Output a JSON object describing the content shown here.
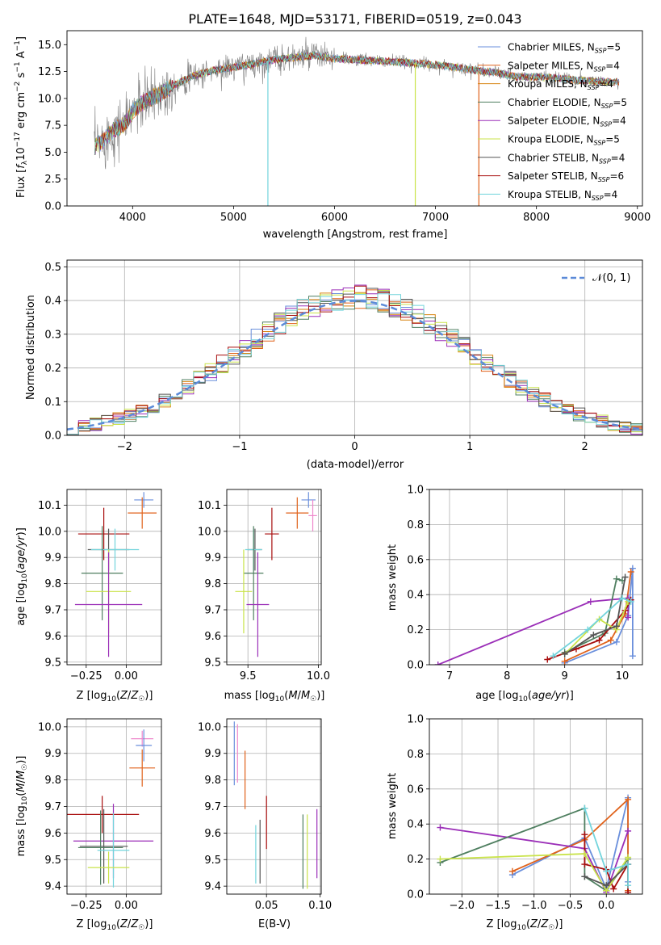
{
  "colors": {
    "chabrier_miles": "#6a8fdc",
    "salpeter_miles": "#e0621b",
    "kroupa_miles": "#d7820f",
    "chabrier_elodie": "#4f7f60",
    "salpeter_elodie": "#9b2fb8",
    "kroupa_elodie": "#c9e34a",
    "chabrier_stelib": "#555555",
    "salpeter_stelib": "#a80d0d",
    "kroupa_stelib": "#72d4dc",
    "data": "#808080",
    "pink": "#ee88cc",
    "normal": "#5b8ad8",
    "grid": "#b0b0b0"
  },
  "legend": [
    {
      "name": "Chabrier MILES, N",
      "sub": "SSP",
      "eq": "=5",
      "color": "#6a8fdc"
    },
    {
      "name": "Salpeter MILES, N",
      "sub": "SSP",
      "eq": "=4",
      "color": "#e0621b"
    },
    {
      "name": "Kroupa MILES, N",
      "sub": "SSP",
      "eq": "=4",
      "color": "#d7820f"
    },
    {
      "name": "Chabrier ELODIE, N",
      "sub": "SSP",
      "eq": "=5",
      "color": "#4f7f60"
    },
    {
      "name": "Salpeter ELODIE, N",
      "sub": "SSP",
      "eq": "=4",
      "color": "#9b2fb8"
    },
    {
      "name": "Kroupa ELODIE, N",
      "sub": "SSP",
      "eq": "=5",
      "color": "#c9e34a"
    },
    {
      "name": "Chabrier STELIB, N",
      "sub": "SSP",
      "eq": "=4",
      "color": "#555555"
    },
    {
      "name": "Salpeter STELIB, N",
      "sub": "SSP",
      "eq": "=6",
      "color": "#a80d0d"
    },
    {
      "name": "Kroupa STELIB, N",
      "sub": "SSP",
      "eq": "=4",
      "color": "#72d4dc"
    }
  ],
  "chart_data": [
    {
      "id": "spectrum",
      "type": "line",
      "title": "PLATE=1648, MJD=53171, FIBERID=0519, z=0.043",
      "xlabel": "wavelength [Angstrom, rest frame]",
      "ylabel": "Flux [f_λ 10⁻¹⁷ erg cm⁻² s⁻¹ A⁻¹]",
      "xlim": [
        3350,
        9050
      ],
      "ylim": [
        0,
        16.3
      ],
      "xticks": [
        4000,
        5000,
        6000,
        7000,
        8000,
        9000
      ],
      "yticks": [
        0.0,
        2.5,
        5.0,
        7.5,
        10.0,
        12.5,
        15.0
      ],
      "ytick_labels": [
        "0.0",
        "2.5",
        "5.0",
        "7.5",
        "10.0",
        "12.5",
        "15.0"
      ],
      "grid": false,
      "legend_position": "top-right",
      "continuum": [
        [
          3620,
          5.5
        ],
        [
          3700,
          6.0
        ],
        [
          3800,
          7.0
        ],
        [
          3900,
          7.5
        ],
        [
          3950,
          8.0
        ],
        [
          4000,
          8.8
        ],
        [
          4100,
          9.6
        ],
        [
          4200,
          10.1
        ],
        [
          4300,
          10.6
        ],
        [
          4400,
          11.2
        ],
        [
          4600,
          12.1
        ],
        [
          4800,
          12.6
        ],
        [
          5000,
          12.9
        ],
        [
          5200,
          13.2
        ],
        [
          5400,
          13.6
        ],
        [
          5600,
          13.8
        ],
        [
          5800,
          14.0
        ],
        [
          6000,
          13.7
        ],
        [
          6200,
          13.6
        ],
        [
          6400,
          13.5
        ],
        [
          6600,
          13.4
        ],
        [
          6800,
          13.3
        ],
        [
          7000,
          13.1
        ],
        [
          7200,
          12.9
        ],
        [
          7400,
          12.6
        ],
        [
          7600,
          12.4
        ],
        [
          7800,
          12.0
        ],
        [
          8000,
          12.0
        ],
        [
          8200,
          11.9
        ],
        [
          8400,
          11.7
        ],
        [
          8600,
          11.6
        ],
        [
          8820,
          11.5
        ]
      ],
      "drop_lines": [
        [
          5340,
          "#72d4dc"
        ],
        [
          6800,
          "#c9e34a"
        ],
        [
          7430,
          "#e0621b"
        ]
      ]
    },
    {
      "id": "residuals",
      "type": "histogram",
      "xlabel": "(data-model)/error",
      "ylabel": "Normed distribution",
      "xlim": [
        -2.5,
        2.5
      ],
      "ylim": [
        0,
        0.52
      ],
      "xticks": [
        -2,
        -1,
        0,
        1,
        2
      ],
      "yticks": [
        0.0,
        0.1,
        0.2,
        0.3,
        0.4,
        0.5
      ],
      "ytick_labels": [
        "0.0",
        "0.1",
        "0.2",
        "0.3",
        "0.4",
        "0.5"
      ],
      "grid": true,
      "bin_width": 0.1,
      "normal_label": "𝒩(0, 1)",
      "legend_position": "top-right"
    },
    {
      "id": "age_vs_Z",
      "type": "errorbar",
      "xlabel": "Z [log₁₀(Z/Z☉)]",
      "ylabel": "age  [log₁₀(age/yr)]",
      "xlim": [
        -0.37,
        0.22
      ],
      "ylim": [
        9.49,
        10.16
      ],
      "xticks": [
        -0.25,
        0.0
      ],
      "xtick_labels": [
        "−0.25",
        "0.00"
      ],
      "yticks": [
        9.5,
        9.6,
        9.7,
        9.8,
        9.9,
        10.0,
        10.1
      ],
      "ytick_labels": [
        "9.5",
        "9.6",
        "9.7",
        "9.8",
        "9.9",
        "10.0",
        "10.1"
      ],
      "points": [
        {
          "x": 0.11,
          "xe": 0.06,
          "y": 10.12,
          "ye": 0.03,
          "c": "#6a8fdc"
        },
        {
          "x": 0.1,
          "xe": 0.09,
          "y": 10.07,
          "ye": 0.06,
          "c": "#e0621b"
        },
        {
          "x": -0.14,
          "xe": 0.16,
          "y": 9.99,
          "ye": 0.1,
          "c": "#a80d0d"
        },
        {
          "x": -0.11,
          "xe": 0.13,
          "y": 9.93,
          "ye": 0.08,
          "c": "#555555"
        },
        {
          "x": -0.07,
          "xe": 0.15,
          "y": 9.93,
          "ye": 0.08,
          "c": "#72d4dc"
        },
        {
          "x": -0.15,
          "xe": 0.13,
          "y": 9.84,
          "ye": 0.18,
          "c": "#4f7f60"
        },
        {
          "x": -0.11,
          "xe": 0.14,
          "y": 9.77,
          "ye": 0.16,
          "c": "#c9e34a"
        },
        {
          "x": -0.11,
          "xe": 0.21,
          "y": 9.72,
          "ye": 0.2,
          "c": "#9b2fb8"
        }
      ]
    },
    {
      "id": "age_vs_mass",
      "type": "errorbar",
      "xlabel": "mass [log₁₀(M/M☉)]",
      "xlim": [
        9.35,
        10.02
      ],
      "ylim": [
        9.49,
        10.16
      ],
      "xticks": [
        9.5,
        10.0
      ],
      "xtick_labels": [
        "9.5",
        "10.0"
      ],
      "yticks": [
        9.5,
        9.6,
        9.7,
        9.8,
        9.9,
        10.0,
        10.1
      ],
      "ytick_labels": [
        "9.5",
        "9.6",
        "9.7",
        "9.8",
        "9.9",
        "10.0",
        "10.1"
      ],
      "points": [
        {
          "x": 9.93,
          "xe": 0.05,
          "y": 10.12,
          "ye": 0.03,
          "c": "#6a8fdc"
        },
        {
          "x": 9.96,
          "xe": 0.03,
          "y": 10.06,
          "ye": 0.06,
          "c": "#ee88cc"
        },
        {
          "x": 9.85,
          "xe": 0.08,
          "y": 10.07,
          "ye": 0.06,
          "c": "#e0621b"
        },
        {
          "x": 9.67,
          "xe": 0.05,
          "y": 9.99,
          "ye": 0.1,
          "c": "#a80d0d"
        },
        {
          "x": 9.55,
          "xe": 0.05,
          "y": 9.93,
          "ye": 0.08,
          "c": "#555555"
        },
        {
          "x": 9.54,
          "xe": 0.06,
          "y": 9.93,
          "ye": 0.08,
          "c": "#72d4dc"
        },
        {
          "x": 9.54,
          "xe": 0.07,
          "y": 9.84,
          "ye": 0.18,
          "c": "#4f7f60"
        },
        {
          "x": 9.47,
          "xe": 0.06,
          "y": 9.77,
          "ye": 0.16,
          "c": "#c9e34a"
        },
        {
          "x": 9.57,
          "xe": 0.08,
          "y": 9.72,
          "ye": 0.2,
          "c": "#9b2fb8"
        }
      ]
    },
    {
      "id": "weight_vs_age",
      "type": "line",
      "xlabel": "age  [log₁₀(age/yr)]",
      "ylabel": "mass weight",
      "xlim": [
        6.65,
        10.35
      ],
      "ylim": [
        0,
        1
      ],
      "xticks": [
        7,
        8,
        9,
        10
      ],
      "yticks": [
        0.0,
        0.2,
        0.4,
        0.6,
        0.8,
        1.0
      ],
      "ytick_labels": [
        "0.0",
        "0.2",
        "0.4",
        "0.6",
        "0.8",
        "1.0"
      ],
      "series": [
        {
          "c": "#6a8fdc",
          "pts": [
            [
              9.0,
              0.01
            ],
            [
              9.9,
              0.13
            ],
            [
              10.1,
              0.28
            ],
            [
              10.18,
              0.55
            ],
            [
              10.18,
              0.05
            ]
          ]
        },
        {
          "c": "#e0621b",
          "pts": [
            [
              9.0,
              0.02
            ],
            [
              9.8,
              0.14
            ],
            [
              10.05,
              0.29
            ],
            [
              10.15,
              0.53
            ]
          ]
        },
        {
          "c": "#9b2fb8",
          "pts": [
            [
              6.8,
              0.0
            ],
            [
              9.45,
              0.36
            ],
            [
              10.1,
              0.38
            ],
            [
              10.1,
              0.27
            ]
          ]
        },
        {
          "c": "#4f7f60",
          "pts": [
            [
              9.0,
              0.07
            ],
            [
              9.7,
              0.18
            ],
            [
              9.9,
              0.49
            ],
            [
              10.0,
              0.48
            ]
          ]
        },
        {
          "c": "#a80d0d",
          "pts": [
            [
              8.7,
              0.03
            ],
            [
              9.2,
              0.09
            ],
            [
              9.6,
              0.14
            ],
            [
              10.05,
              0.31
            ],
            [
              10.15,
              0.37
            ]
          ]
        },
        {
          "c": "#c9e34a",
          "pts": [
            [
              9.0,
              0.06
            ],
            [
              9.6,
              0.26
            ],
            [
              9.9,
              0.2
            ],
            [
              10.1,
              0.36
            ]
          ]
        },
        {
          "c": "#555555",
          "pts": [
            [
              9.0,
              0.06
            ],
            [
              9.5,
              0.17
            ],
            [
              9.9,
              0.22
            ],
            [
              10.05,
              0.5
            ]
          ]
        },
        {
          "c": "#72d4dc",
          "pts": [
            [
              8.8,
              0.05
            ],
            [
              9.4,
              0.2
            ],
            [
              10.0,
              0.38
            ],
            [
              10.15,
              0.36
            ]
          ]
        }
      ]
    },
    {
      "id": "mass_vs_Z",
      "type": "errorbar",
      "xlabel": "Z [log₁₀(Z/Z☉)]",
      "ylabel": "mass [log₁₀(M/M☉)]",
      "xlim": [
        -0.37,
        0.22
      ],
      "ylim": [
        9.37,
        10.03
      ],
      "xticks": [
        -0.25,
        0.0
      ],
      "xtick_labels": [
        "−0.25",
        "0.00"
      ],
      "yticks": [
        9.4,
        9.5,
        9.6,
        9.7,
        9.8,
        9.9,
        10.0
      ],
      "ytick_labels": [
        "9.4",
        "9.5",
        "9.6",
        "9.7",
        "9.8",
        "9.9",
        "10.0"
      ],
      "points": [
        {
          "x": 0.1,
          "xe": 0.07,
          "y": 9.955,
          "ye": 0.03,
          "c": "#ee88cc"
        },
        {
          "x": 0.11,
          "xe": 0.05,
          "y": 9.93,
          "ye": 0.06,
          "c": "#6a8fdc"
        },
        {
          "x": 0.1,
          "xe": 0.08,
          "y": 9.845,
          "ye": 0.07,
          "c": "#e0621b"
        },
        {
          "x": -0.15,
          "xe": 0.23,
          "y": 9.67,
          "ye": 0.07,
          "c": "#a80d0d"
        },
        {
          "x": -0.08,
          "xe": 0.25,
          "y": 9.57,
          "ye": 0.14,
          "c": "#9b2fb8"
        },
        {
          "x": -0.14,
          "xe": 0.15,
          "y": 9.55,
          "ye": 0.14,
          "c": "#555555"
        },
        {
          "x": -0.16,
          "xe": 0.14,
          "y": 9.545,
          "ye": 0.14,
          "c": "#4f7f60"
        },
        {
          "x": -0.08,
          "xe": 0.1,
          "y": 9.535,
          "ye": 0.14,
          "c": "#72d4dc"
        },
        {
          "x": -0.11,
          "xe": 0.13,
          "y": 9.47,
          "ye": 0.06,
          "c": "#c9e34a"
        }
      ]
    },
    {
      "id": "mass_vs_ebv",
      "type": "errorbar",
      "xlabel": "E(B-V)",
      "xlim": [
        0.013,
        0.101
      ],
      "ylim": [
        9.37,
        10.03
      ],
      "xticks": [
        0.05,
        0.1
      ],
      "xtick_labels": [
        "0.05",
        "0.10"
      ],
      "yticks": [
        9.4,
        9.5,
        9.6,
        9.7,
        9.8,
        9.9,
        10.0
      ],
      "ytick_labels": [
        "9.4",
        "9.5",
        "9.6",
        "9.7",
        "9.8",
        "9.9",
        "10.0"
      ],
      "points": [
        {
          "x": 0.02,
          "xe": 0,
          "y": 9.9,
          "ye": 0.12,
          "c": "#6a8fdc"
        },
        {
          "x": 0.023,
          "xe": 0,
          "y": 9.9,
          "ye": 0.11,
          "c": "#ee88cc"
        },
        {
          "x": 0.03,
          "xe": 0,
          "y": 9.8,
          "ye": 0.11,
          "c": "#e0621b"
        },
        {
          "x": 0.04,
          "xe": 0,
          "y": 9.52,
          "ye": 0.11,
          "c": "#72d4dc"
        },
        {
          "x": 0.044,
          "xe": 0,
          "y": 9.53,
          "ye": 0.12,
          "c": "#555555"
        },
        {
          "x": 0.05,
          "xe": 0,
          "y": 9.64,
          "ye": 0.1,
          "c": "#a80d0d"
        },
        {
          "x": 0.084,
          "xe": 0,
          "y": 9.53,
          "ye": 0.14,
          "c": "#4f7f60"
        },
        {
          "x": 0.088,
          "xe": 0,
          "y": 9.53,
          "ye": 0.14,
          "c": "#c9e34a"
        },
        {
          "x": 0.097,
          "xe": 0,
          "y": 9.56,
          "ye": 0.13,
          "c": "#9b2fb8"
        }
      ]
    },
    {
      "id": "weight_vs_Z",
      "type": "line",
      "xlabel": "Z [log₁₀(Z/Z☉)]",
      "ylabel": "mass weight",
      "xlim": [
        -2.45,
        0.5
      ],
      "ylim": [
        0,
        1
      ],
      "xticks": [
        -2.0,
        -1.5,
        -1.0,
        -0.5,
        0.0
      ],
      "xtick_labels": [
        "−2.0",
        "−1.5",
        "−1.0",
        "−0.5",
        "0.0"
      ],
      "yticks": [
        0.0,
        0.2,
        0.4,
        0.6,
        0.8,
        1.0
      ],
      "ytick_labels": [
        "0.0",
        "0.2",
        "0.4",
        "0.6",
        "0.8",
        "1.0"
      ],
      "series": [
        {
          "c": "#6a8fdc",
          "pts": [
            [
              -1.3,
              0.11
            ],
            [
              -0.3,
              0.32
            ],
            [
              0.0,
              0.03
            ],
            [
              0.3,
              0.55
            ],
            [
              0.3,
              0.07
            ]
          ]
        },
        {
          "c": "#e0621b",
          "pts": [
            [
              -1.3,
              0.13
            ],
            [
              -0.3,
              0.31
            ],
            [
              0.3,
              0.54
            ],
            [
              0.3,
              0.02
            ]
          ]
        },
        {
          "c": "#9b2fb8",
          "pts": [
            [
              -2.3,
              0.38
            ],
            [
              -0.3,
              0.26
            ],
            [
              0.0,
              0.01
            ],
            [
              0.3,
              0.36
            ]
          ]
        },
        {
          "c": "#4f7f60",
          "pts": [
            [
              -2.3,
              0.18
            ],
            [
              -0.3,
              0.49
            ],
            [
              -0.3,
              0.1
            ],
            [
              0.0,
              0.02
            ],
            [
              0.3,
              0.2
            ]
          ]
        },
        {
          "c": "#a80d0d",
          "pts": [
            [
              -0.3,
              0.34
            ],
            [
              -0.3,
              0.17
            ],
            [
              0.0,
              0.14
            ],
            [
              0.1,
              0.03
            ],
            [
              0.3,
              0.17
            ],
            [
              0.3,
              0.01
            ]
          ]
        },
        {
          "c": "#c9e34a",
          "pts": [
            [
              -2.3,
              0.2
            ],
            [
              -0.3,
              0.23
            ],
            [
              0.0,
              0.02
            ],
            [
              0.3,
              0.21
            ]
          ]
        },
        {
          "c": "#555555",
          "pts": [
            [
              -0.3,
              0.1
            ],
            [
              0.0,
              0.05
            ],
            [
              0.3,
              0.17
            ]
          ]
        },
        {
          "c": "#72d4dc",
          "pts": [
            [
              -0.3,
              0.49
            ],
            [
              0.0,
              0.13
            ],
            [
              0.3,
              0.17
            ],
            [
              0.3,
              0.05
            ]
          ]
        }
      ]
    }
  ]
}
